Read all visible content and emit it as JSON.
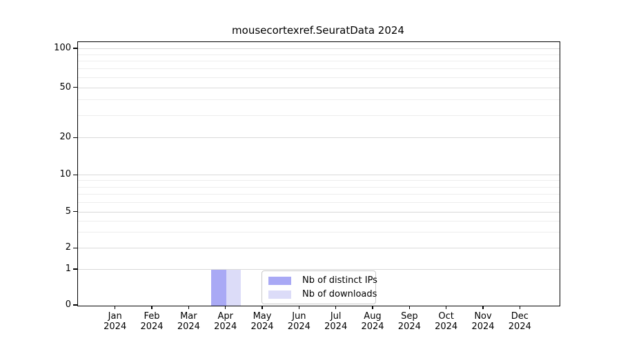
{
  "chart_data": {
    "type": "bar",
    "title": "mousecortexref.SeuratData 2024",
    "x_axis": {
      "categories": [
        "Jan",
        "Feb",
        "Mar",
        "Apr",
        "May",
        "Jun",
        "Jul",
        "Aug",
        "Sep",
        "Oct",
        "Nov",
        "Dec"
      ],
      "year_label": "2024"
    },
    "y_axis": {
      "scale": "log 1-2-5 steps above 1, linear segment 0 to 1",
      "ylim": [
        0,
        110
      ],
      "major_ticks": [
        {
          "label": "100",
          "value": 100,
          "pos": 0.9738
        },
        {
          "label": "50",
          "value": 50,
          "pos": 0.8254
        },
        {
          "label": "20",
          "value": 20,
          "pos": 0.6353
        },
        {
          "label": "10",
          "value": 10,
          "pos": 0.4939
        },
        {
          "label": "5",
          "value": 5,
          "pos": 0.3542
        },
        {
          "label": "2",
          "value": 2,
          "pos": 0.2165
        },
        {
          "label": "1",
          "value": 1,
          "pos": 0.1361
        },
        {
          "label": "0",
          "value": 0,
          "pos": 0.0
        }
      ],
      "minor_tick_pos": [
        0.2774,
        0.3207,
        0.391,
        0.422,
        0.4489,
        0.4727,
        0.7194,
        0.7792,
        0.8644,
        0.8974,
        0.926,
        0.9512
      ]
    },
    "series": [
      {
        "name": "Nb of distinct IPs",
        "color": "#a9a9f5",
        "values": [
          0,
          0,
          0,
          1,
          0,
          0,
          0,
          0,
          0,
          0,
          0,
          0
        ]
      },
      {
        "name": "Nb of downloads",
        "color": "#dcdcf8",
        "values": [
          0,
          0,
          0,
          1,
          0,
          0,
          0,
          0,
          0,
          0,
          0,
          0
        ]
      }
    ],
    "legend_position": "inside-bottom-center",
    "grid": {
      "orientation": "horizontal",
      "major_color": "#d9d9d9",
      "minor_color": "#ededed"
    }
  }
}
